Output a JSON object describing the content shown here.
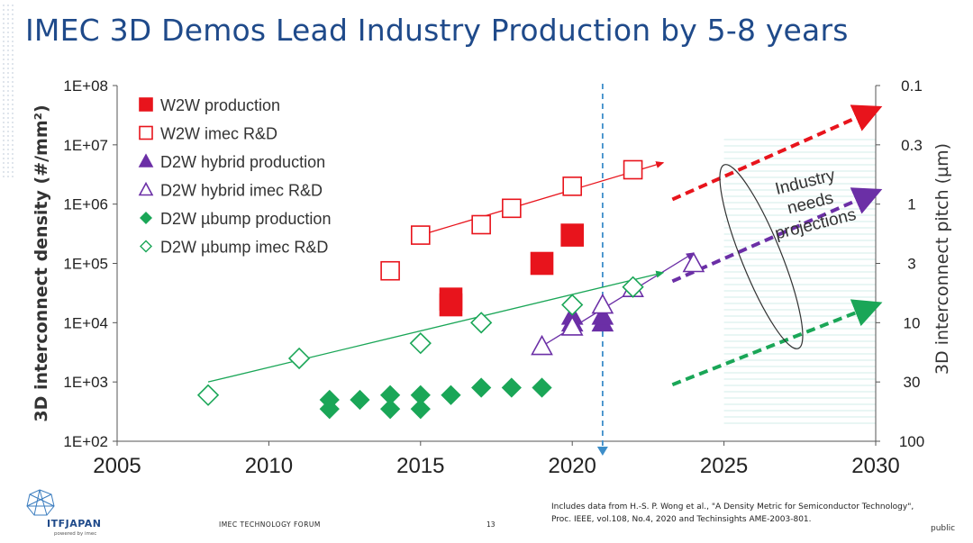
{
  "page": {
    "title": "IMEC 3D Demos Lead Industry Production by 5-8 years",
    "footer_forum": "IMEC TECHNOLOGY FORUM",
    "footer_page": "13",
    "footer_credit_line1": "Includes data from H.-S. P. Wong et al., \"A Density Metric for Semiconductor Technology\",",
    "footer_credit_line2": "Proc. IEEE, vol.108, No.4, 2020 and Techinsights AME-2003-801.",
    "footer_public": "public",
    "logo_text": "ITFJAPAN",
    "logo_sub": "powered by imec"
  },
  "chart_data": {
    "type": "scatter",
    "y_scale": "log",
    "xlim": [
      2005,
      2030
    ],
    "ylim": [
      100,
      100000000
    ],
    "x_ticks": [
      "2005",
      "2010",
      "2015",
      "2020",
      "2025",
      "2030"
    ],
    "y_ticks": [
      "1E+02",
      "1E+03",
      "1E+04",
      "1E+05",
      "1E+06",
      "1E+07",
      "1E+08"
    ],
    "y2_ticks": [
      "0.1",
      "0.3",
      "1",
      "3",
      "10",
      "30",
      "100"
    ],
    "ylabel": "3D interconnect density (#/mm²)",
    "y2label": "3D interconnect pitch (µm)",
    "legend_position": "top-left",
    "colors": {
      "red": "#e8141c",
      "purple": "#6b2fa6",
      "green": "#1aa657",
      "blue_dash": "#3d8ec9"
    },
    "series": [
      {
        "name": "W2W production",
        "marker": "square-filled",
        "color": "#e8141c",
        "points": [
          [
            2016,
            20000
          ],
          [
            2016,
            25000
          ],
          [
            2019,
            100000
          ],
          [
            2020,
            300000
          ]
        ]
      },
      {
        "name": "W2W imec R&D",
        "marker": "square-open",
        "color": "#e8141c",
        "points": [
          [
            2014,
            75000
          ],
          [
            2015,
            300000
          ],
          [
            2017,
            450000
          ],
          [
            2018,
            850000
          ],
          [
            2020,
            2000000
          ],
          [
            2022,
            3800000
          ]
        ]
      },
      {
        "name": "D2W hybrid production",
        "marker": "triangle-filled",
        "color": "#6b2fa6",
        "points": [
          [
            2020,
            10000
          ],
          [
            2020,
            13000
          ],
          [
            2021,
            10000
          ],
          [
            2021,
            13000
          ]
        ]
      },
      {
        "name": "D2W hybrid imec R&D",
        "marker": "triangle-open",
        "color": "#6b2fa6",
        "points": [
          [
            2019,
            4000
          ],
          [
            2020,
            8500
          ],
          [
            2021,
            20000
          ],
          [
            2022,
            38000
          ],
          [
            2024,
            100000
          ]
        ]
      },
      {
        "name": "D2W µbump production",
        "marker": "diamond-filled",
        "color": "#1aa657",
        "points": [
          [
            2012,
            500
          ],
          [
            2012,
            350
          ],
          [
            2013,
            500
          ],
          [
            2014,
            600
          ],
          [
            2014,
            350
          ],
          [
            2015,
            600
          ],
          [
            2015,
            350
          ],
          [
            2016,
            600
          ],
          [
            2017,
            800
          ],
          [
            2018,
            800
          ],
          [
            2019,
            800
          ]
        ]
      },
      {
        "name": "D2W µbump imec R&D",
        "marker": "diamond-open",
        "color": "#1aa657",
        "points": [
          [
            2008,
            600
          ],
          [
            2011,
            2500
          ],
          [
            2015,
            4500
          ],
          [
            2017,
            10000
          ],
          [
            2020,
            20000
          ],
          [
            2022,
            40000
          ]
        ]
      }
    ],
    "trend_lines": [
      {
        "color": "#e8141c",
        "from": [
          2015,
          300000
        ],
        "to": [
          2023,
          5000000
        ]
      },
      {
        "color": "#6b2fa6",
        "from": [
          2019,
          4000
        ],
        "to": [
          2024,
          150000
        ]
      },
      {
        "color": "#1aa657",
        "from": [
          2008,
          1000
        ],
        "to": [
          2023,
          70000
        ]
      }
    ],
    "projection_arrows": [
      {
        "color": "#e8141c",
        "from": [
          2023.3,
          1200000
        ],
        "to": [
          2030,
          40000000
        ]
      },
      {
        "color": "#6b2fa6",
        "from": [
          2023.3,
          50000
        ],
        "to": [
          2030,
          1600000
        ]
      },
      {
        "color": "#1aa657",
        "from": [
          2023.3,
          900
        ],
        "to": [
          2030,
          20000
        ]
      }
    ],
    "vertical_line_x": 2021,
    "annotation": "Industry\nneeds\nprojections"
  }
}
